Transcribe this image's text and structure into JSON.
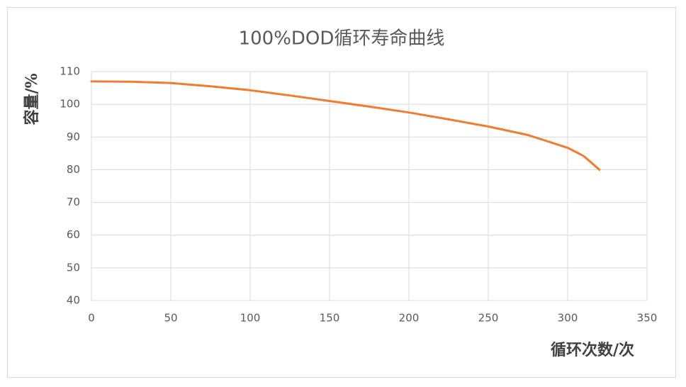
{
  "chart_data": {
    "type": "line",
    "title": "100%DOD循环寿命曲线",
    "x_label": "循环次数/次",
    "y_label": "容量/%",
    "x": [
      0,
      25,
      50,
      75,
      100,
      125,
      150,
      175,
      200,
      225,
      250,
      275,
      300,
      310,
      320
    ],
    "series": [
      {
        "name": "容量",
        "color": "#ed7d31",
        "values": [
          107,
          106.9,
          106.5,
          105.5,
          104.3,
          102.7,
          101,
          99.3,
          97.5,
          95.4,
          93.2,
          90.6,
          86.7,
          84.2,
          80
        ]
      }
    ],
    "xlim": [
      0,
      350
    ],
    "xticks": [
      0,
      50,
      100,
      150,
      200,
      250,
      300,
      350
    ],
    "ylim": [
      40,
      110
    ],
    "yticks": [
      40,
      50,
      60,
      70,
      80,
      90,
      100,
      110
    ],
    "grid": true
  }
}
